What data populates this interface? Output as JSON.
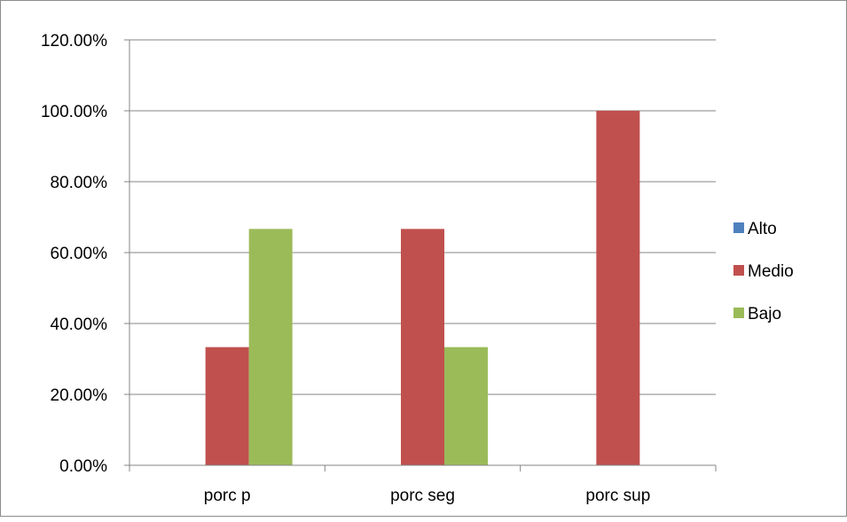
{
  "chart_data": {
    "type": "bar",
    "categories": [
      "porc p",
      "porc seg",
      "porc sup"
    ],
    "series": [
      {
        "name": "Alto",
        "color": "#4F81BD",
        "values": [
          0,
          0,
          0
        ]
      },
      {
        "name": "Medio",
        "color": "#C0504D",
        "values": [
          33.33,
          66.67,
          100
        ]
      },
      {
        "name": "Bajo",
        "color": "#9BBB59",
        "values": [
          66.67,
          33.33,
          0
        ]
      }
    ],
    "title": "",
    "xlabel": "",
    "ylabel": "",
    "ylim": [
      0,
      120
    ],
    "yticks": [
      "0.00%",
      "20.00%",
      "40.00%",
      "60.00%",
      "80.00%",
      "100.00%",
      "120.00%"
    ],
    "grid": true,
    "legend": "right"
  }
}
